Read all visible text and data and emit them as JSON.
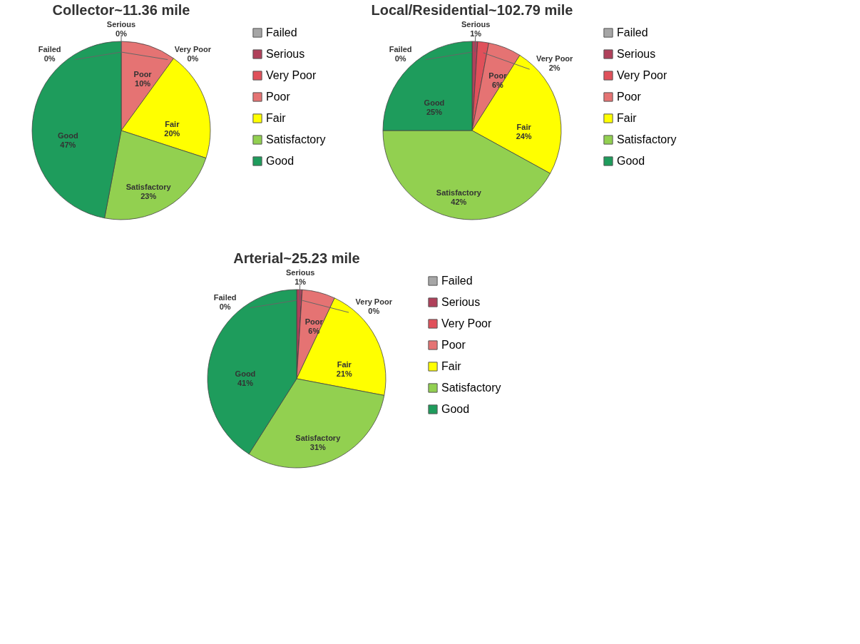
{
  "chart_data": [
    {
      "type": "pie",
      "title": "Collector~11.36 mile",
      "categories": [
        "Failed",
        "Serious",
        "Very Poor",
        "Poor",
        "Fair",
        "Satisfactory",
        "Good"
      ],
      "values": [
        0,
        0,
        0,
        10,
        20,
        23,
        47
      ],
      "value_labels": [
        "0%",
        "0%",
        "0%",
        "10%",
        "20%",
        "23%",
        "47%"
      ],
      "colors": [
        "#a6a6a6",
        "#b0405a",
        "#e0505a",
        "#e57373",
        "#ffff00",
        "#92d050",
        "#1e9c5c"
      ],
      "legend": "right"
    },
    {
      "type": "pie",
      "title": "Local/Residential~102.79 mile",
      "categories": [
        "Failed",
        "Serious",
        "Very Poor",
        "Poor",
        "Fair",
        "Satisfactory",
        "Good"
      ],
      "values": [
        0,
        1,
        2,
        6,
        24,
        42,
        25
      ],
      "value_labels": [
        "0%",
        "1%",
        "2%",
        "6%",
        "24%",
        "42%",
        "25%"
      ],
      "colors": [
        "#a6a6a6",
        "#b0405a",
        "#e0505a",
        "#e57373",
        "#ffff00",
        "#92d050",
        "#1e9c5c"
      ],
      "legend": "right"
    },
    {
      "type": "pie",
      "title": "Arterial~25.23 mile",
      "categories": [
        "Failed",
        "Serious",
        "Very Poor",
        "Poor",
        "Fair",
        "Satisfactory",
        "Good"
      ],
      "values": [
        0,
        1,
        0,
        6,
        21,
        31,
        41
      ],
      "value_labels": [
        "0%",
        "1%",
        "0%",
        "6%",
        "21%",
        "31%",
        "41%"
      ],
      "colors": [
        "#a6a6a6",
        "#b0405a",
        "#e0505a",
        "#e57373",
        "#ffff00",
        "#92d050",
        "#1e9c5c"
      ],
      "legend": "right"
    }
  ]
}
